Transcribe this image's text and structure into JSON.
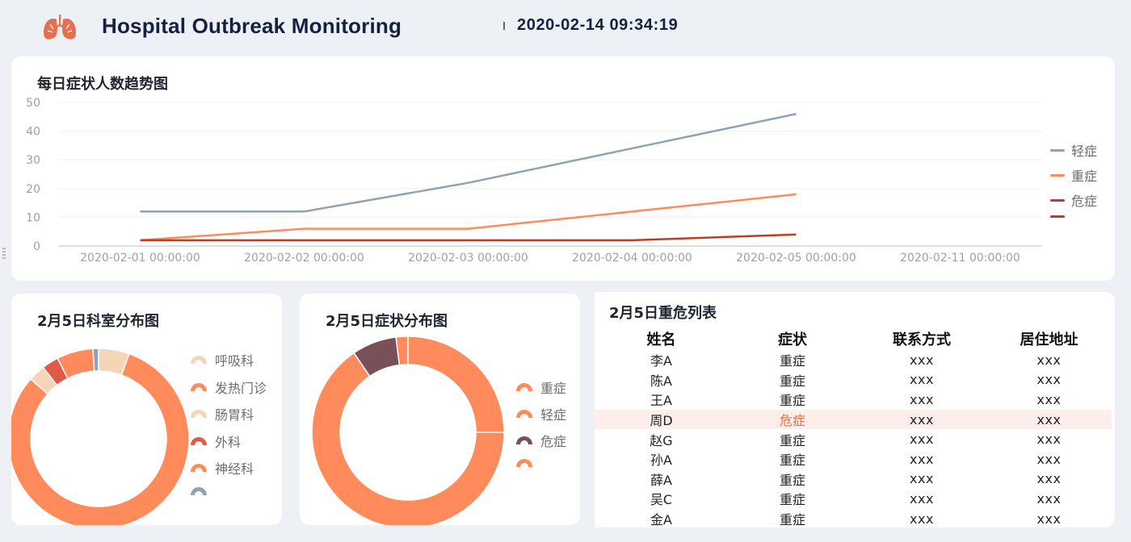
{
  "header": {
    "title": "Hospital Outbreak Monitoring",
    "datetime": "2020-02-14 09:34:19",
    "logo_icon": "lungs-icon"
  },
  "trend_card": {
    "title": "每日症状人数趋势图",
    "legend": [
      "轻症",
      "重症",
      "危症",
      ""
    ]
  },
  "dept_card": {
    "title": "2月5日科室分布图",
    "legend": [
      "呼吸科",
      "发热门诊",
      "肠胃科",
      "外科",
      "神经科",
      ""
    ]
  },
  "symptom_card": {
    "title": "2月5日症状分布图",
    "legend": [
      "重症",
      "轻症",
      "危症",
      ""
    ]
  },
  "critical_list": {
    "title": "2月5日重危列表",
    "columns": [
      "姓名",
      "症状",
      "联系方式",
      "居住地址"
    ],
    "rows": [
      [
        "李A",
        "重症",
        "xxx",
        "xxx"
      ],
      [
        "陈A",
        "重症",
        "xxx",
        "xxx"
      ],
      [
        "王A",
        "重症",
        "xxx",
        "xxx"
      ],
      [
        "周D",
        "危症",
        "xxx",
        "xxx"
      ],
      [
        "赵G",
        "重症",
        "xxx",
        "xxx"
      ],
      [
        "孙A",
        "重症",
        "xxx",
        "xxx"
      ],
      [
        "薛A",
        "重症",
        "xxx",
        "xxx"
      ],
      [
        "吴C",
        "重症",
        "xxx",
        "xxx"
      ],
      [
        "金A",
        "重症",
        "xxx",
        "xxx"
      ]
    ],
    "highlight_row": 3
  },
  "colors": {
    "mild": "#8fa3b8",
    "severe": "#ff8a5b",
    "critical": "#c23b22",
    "peach": "#f4d5b8",
    "brown": "#7a5058",
    "red": "#e05a45"
  },
  "chart_data": [
    {
      "type": "line",
      "title": "每日症状人数趋势图",
      "x": [
        "2020-02-01 00:00:00",
        "2020-02-02 00:00:00",
        "2020-02-03 00:00:00",
        "2020-02-04 00:00:00",
        "2020-02-05 00:00:00",
        "2020-02-11 00:00:00"
      ],
      "ylim": [
        0,
        50
      ],
      "yticks": [
        0,
        10,
        20,
        30,
        40,
        50
      ],
      "grid": true,
      "legend_position": "right",
      "series": [
        {
          "name": "轻症",
          "color": "#8fa3b8",
          "values": [
            12,
            12,
            22,
            34,
            46,
            null
          ]
        },
        {
          "name": "重症",
          "color": "#ff8a5b",
          "values": [
            2,
            6,
            6,
            12,
            18,
            null
          ]
        },
        {
          "name": "危症",
          "color": "#c23b22",
          "values": [
            2,
            2,
            2,
            2,
            4,
            null
          ]
        },
        {
          "name": "",
          "color": "#c23b22",
          "values": [
            null,
            null,
            null,
            null,
            null,
            null
          ]
        }
      ]
    },
    {
      "type": "pie",
      "title": "2月5日科室分布图",
      "donut": true,
      "legend_position": "right",
      "slices": [
        {
          "label": "呼吸科",
          "value": 5.5,
          "color": "#f4d5b8"
        },
        {
          "label": "发热门诊",
          "value": 81,
          "color": "#ff8a5b"
        },
        {
          "label": "肠胃科",
          "value": 3,
          "color": "#f4d5b8"
        },
        {
          "label": "外科",
          "value": 3,
          "color": "#e05a45"
        },
        {
          "label": "神经科",
          "value": 6.5,
          "color": "#ff8a5b"
        },
        {
          "label": "",
          "value": 1,
          "color": "#8fa3b8"
        }
      ]
    },
    {
      "type": "pie",
      "title": "2月5日症状分布图",
      "donut": true,
      "legend_position": "right",
      "slices": [
        {
          "label": "重症",
          "value": 25,
          "color": "#ff8a5b"
        },
        {
          "label": "轻症",
          "value": 65.5,
          "color": "#ff8a5b"
        },
        {
          "label": "危症",
          "value": 7.5,
          "color": "#7a5058"
        },
        {
          "label": "",
          "value": 2,
          "color": "#ff8a5b"
        }
      ]
    }
  ]
}
